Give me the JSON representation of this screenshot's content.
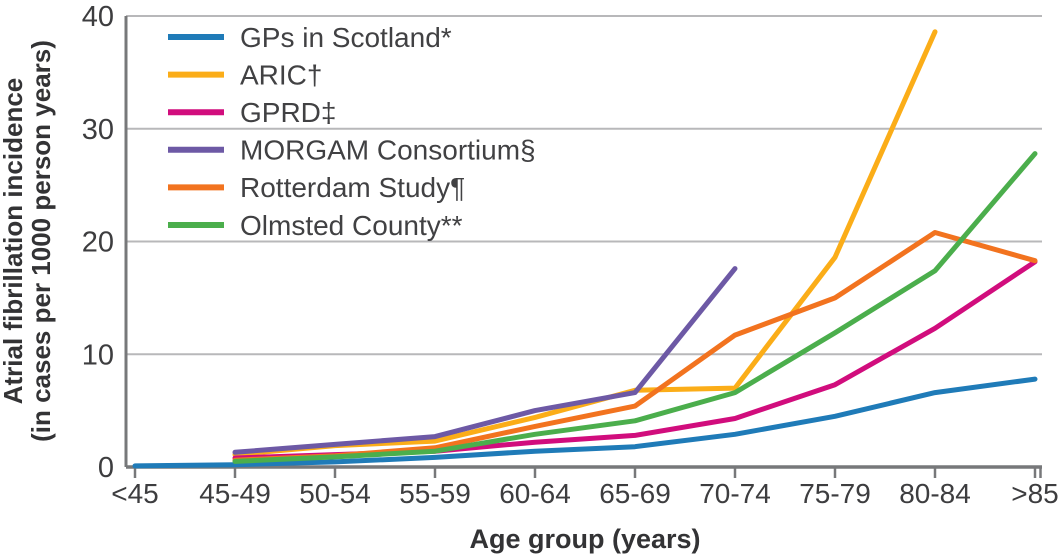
{
  "chart_data": {
    "type": "line",
    "title": "",
    "xlabel": "Age group (years)",
    "ylabel_line1": "Atrial fibrillation incidence",
    "ylabel_line2": "(in cases per 1000 person years)",
    "categories": [
      "<45",
      "45-49",
      "50-54",
      "55-59",
      "60-64",
      "65-69",
      "70-74",
      "75-79",
      "80-84",
      ">85"
    ],
    "ylim": [
      0,
      40
    ],
    "yticks": [
      0,
      10,
      20,
      30,
      40
    ],
    "grid": "horizontal-gridlines",
    "legend_position": "top-left-inside",
    "series": [
      {
        "name": "GPs in Scotland*",
        "color": "#1f7bb8",
        "values": [
          0.1,
          0.2,
          0.45,
          0.85,
          1.4,
          1.8,
          2.9,
          4.5,
          6.6,
          7.8
        ]
      },
      {
        "name": "ARIC†",
        "color": "#fbad18",
        "values": [
          null,
          1.1,
          1.9,
          2.3,
          4.4,
          6.8,
          7.0,
          18.6,
          38.6,
          null
        ]
      },
      {
        "name": "GPRD‡",
        "color": "#d10d7d",
        "values": [
          null,
          0.8,
          1.1,
          1.4,
          2.2,
          2.8,
          4.3,
          7.3,
          12.3,
          18.2
        ]
      },
      {
        "name": "MORGAM Consortium§",
        "color": "#6d59a5",
        "values": [
          null,
          1.3,
          2.0,
          2.7,
          5.0,
          6.6,
          17.6,
          null,
          null,
          null
        ]
      },
      {
        "name": "Rotterdam Study¶",
        "color": "#f2731f",
        "values": [
          null,
          0.6,
          1.0,
          1.7,
          3.6,
          5.4,
          11.7,
          15.0,
          20.8,
          18.3
        ]
      },
      {
        "name": "Olmsted County**",
        "color": "#4bae4c",
        "values": [
          null,
          0.5,
          0.9,
          1.4,
          2.9,
          4.1,
          6.6,
          11.9,
          17.4,
          27.8
        ]
      }
    ],
    "style": {
      "grid_color": "#b8b8ba",
      "axis_color": "#77787a",
      "tick_label_color": "#3d3d3f",
      "title_color": "#333335",
      "legend_text_color": "#414143"
    }
  }
}
